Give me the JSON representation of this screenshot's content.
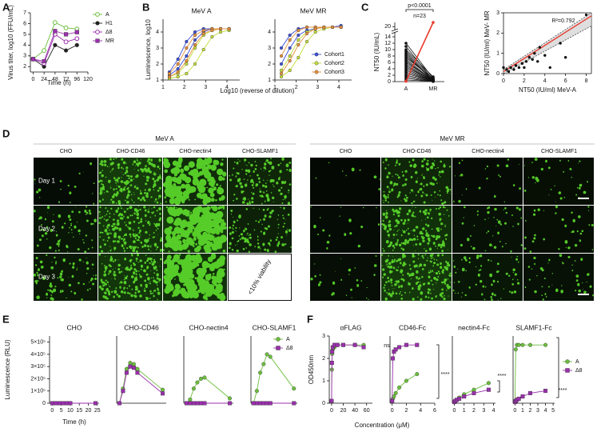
{
  "panel_labels": [
    "A",
    "B",
    "C",
    "D",
    "E",
    "F"
  ],
  "chart_data": [
    {
      "type": "line",
      "ylabel": "Virus titer, log10 (FFU/mL)",
      "xlabel": "Time (h)",
      "x": [
        0,
        24,
        48,
        72,
        96
      ],
      "xlim": [
        -6,
        120
      ],
      "xticks": [
        0,
        24,
        48,
        72,
        96,
        120
      ],
      "ylim": [
        1.5,
        7
      ],
      "yticks": [
        2,
        3,
        4,
        5,
        6,
        7
      ],
      "legend": "right",
      "series": [
        {
          "name": "A",
          "color": "#6cbf3c",
          "marker": "circle-open",
          "values": [
            2.7,
            3.5,
            6.1,
            5.6,
            5.5
          ]
        },
        {
          "name": "H1",
          "color": "#222222",
          "marker": "circle",
          "values": [
            2.7,
            2.0,
            4.0,
            3.5,
            4.0
          ]
        },
        {
          "name": "Δ8",
          "color": "#9b2fae",
          "marker": "circle-open",
          "values": [
            2.7,
            2.3,
            5.0,
            4.3,
            4.6
          ]
        },
        {
          "name": "MR",
          "color": "#9b2fae",
          "marker": "square",
          "values": [
            2.7,
            2.5,
            5.3,
            5.0,
            5.2
          ]
        }
      ]
    },
    {
      "type": "line",
      "title": "MeV A",
      "ylabel": "Luminescence, log10",
      "xlabel": "Log10 (reverse of dilution)",
      "x": [
        1.3,
        1.7,
        2.1,
        2.5,
        2.9,
        3.3,
        3.7,
        4.1
      ],
      "xlim": [
        1,
        4.6
      ],
      "xticks": [
        1,
        2,
        3,
        4
      ],
      "ylim": [
        1,
        4.8
      ],
      "yticks": [
        1,
        2,
        3,
        4
      ],
      "series": [
        {
          "color": "#3b4fd8",
          "marker": "circle",
          "curves": [
            [
              1.5,
              2.3,
              3.4,
              4.0,
              4.2,
              4.2,
              4.2,
              4.2
            ],
            [
              1.3,
              1.7,
              2.5,
              3.5,
              4.0,
              4.2,
              4.2,
              4.2
            ]
          ]
        },
        {
          "color": "#c4de3a",
          "marker": "circle",
          "curves": [
            [
              1.2,
              1.4,
              2.0,
              3.0,
              3.8,
              4.1,
              4.2,
              4.2
            ],
            [
              1.1,
              1.2,
              1.4,
              2.0,
              2.9,
              3.7,
              4.0,
              4.1
            ]
          ]
        },
        {
          "color": "#e8903a",
          "marker": "circle",
          "curves": [
            [
              1.4,
              2.0,
              3.0,
              3.8,
              4.1,
              4.2,
              4.2,
              4.2
            ],
            [
              1.2,
              1.5,
              2.2,
              3.2,
              3.9,
              4.1,
              4.2,
              4.2
            ]
          ]
        }
      ]
    },
    {
      "type": "line",
      "title": "MeV MR",
      "x": [
        1.3,
        1.7,
        2.1,
        2.5,
        2.9,
        3.3,
        3.7,
        4.1
      ],
      "xlim": [
        1,
        4.6
      ],
      "xticks": [
        1,
        2,
        3,
        4
      ],
      "ylim": [
        1,
        4.8
      ],
      "yticks": [
        1,
        2,
        3,
        4
      ],
      "legend": "lower right",
      "series": [
        {
          "name": "Cohort1",
          "color": "#3b4fd8",
          "marker": "circle",
          "curves": [
            [
              3.0,
              3.8,
              4.2,
              4.3,
              4.3,
              4.3,
              4.3,
              4.3
            ],
            [
              2.0,
              3.0,
              3.8,
              4.1,
              4.2,
              4.3,
              4.3,
              4.4
            ]
          ]
        },
        {
          "name": "Cohort2",
          "color": "#c4de3a",
          "marker": "circle",
          "curves": [
            [
              1.6,
              2.5,
              3.5,
              4.0,
              4.2,
              4.3,
              4.3,
              4.3
            ],
            [
              1.2,
              1.6,
              2.4,
              3.4,
              4.0,
              4.2,
              4.3,
              4.3
            ]
          ]
        },
        {
          "name": "Cohort3",
          "color": "#e8903a",
          "marker": "circle",
          "curves": [
            [
              2.5,
              3.5,
              4.1,
              4.3,
              4.3,
              4.3,
              4.3,
              4.3
            ],
            [
              1.4,
              2.2,
              3.2,
              3.9,
              4.2,
              4.3,
              4.3,
              4.3
            ]
          ]
        }
      ]
    },
    {
      "type": "paired",
      "ylabel": "NT50 (IU/mL)",
      "categories": [
        "A",
        "MR"
      ],
      "ylim": [
        0,
        22
      ],
      "axis_break": [
        15,
        19
      ],
      "yticks": [
        0,
        2,
        4,
        6,
        8,
        10,
        12,
        14,
        20
      ],
      "annotations": [
        "p<0.0001",
        "n=23"
      ],
      "series": [
        {
          "color": "#111111",
          "values": [
            [
              12,
              1
            ],
            [
              11,
              0.5
            ],
            [
              10,
              1.5
            ],
            [
              9.5,
              0.8
            ],
            [
              9,
              0.3
            ],
            [
              8.5,
              0.2
            ],
            [
              8,
              0.5
            ],
            [
              7.5,
              1
            ],
            [
              7,
              0.3
            ],
            [
              6.5,
              0.2
            ],
            [
              6,
              0.5
            ],
            [
              5.5,
              0.2
            ],
            [
              5,
              0.1
            ],
            [
              4.5,
              0.3
            ],
            [
              4,
              0.2
            ],
            [
              3.5,
              0.1
            ],
            [
              3,
              0.1
            ],
            [
              2.5,
              0.2
            ],
            [
              2,
              0.1
            ],
            [
              1.5,
              0.1
            ],
            [
              1,
              0.05
            ],
            [
              0.5,
              0.1
            ]
          ]
        },
        {
          "color": "#e8382b",
          "values": [
            [
              0.1,
              22
            ]
          ]
        }
      ]
    },
    {
      "type": "scatter",
      "xlabel": "NT50 (IU/ml)  MeV-A",
      "ylabel": "NT50 (IU/ml)  MeV- MR",
      "color": "#111111",
      "x": [
        0,
        0.3,
        0.5,
        0.7,
        1,
        1.2,
        1.5,
        1.8,
        2,
        2.2,
        2.5,
        2.8,
        3,
        3.3,
        3.5,
        4,
        4.5,
        5.5,
        6,
        8
      ],
      "values": [
        0.3,
        0.2,
        0.1,
        0.3,
        0.2,
        0.4,
        0.3,
        0.5,
        0.3,
        0.6,
        0.8,
        0.7,
        1.0,
        0.6,
        1.3,
        0.9,
        0.3,
        1.5,
        0.8,
        2.9
      ],
      "xlim": [
        0,
        8.5
      ],
      "xticks": [
        0,
        2,
        4,
        6,
        8
      ],
      "ylim": [
        0,
        3
      ],
      "yticks": [
        0,
        1,
        2,
        3
      ],
      "annotations": [
        "R²=0.792"
      ],
      "fit": {
        "color": "#e8382b",
        "x": [
          0,
          8.5
        ],
        "y": [
          0.1,
          2.85
        ],
        "band_low": [
          0,
          2.35
        ],
        "band_high": [
          0.2,
          3
        ]
      }
    },
    {
      "type": "line",
      "title": "CHO",
      "ylabel": "Luminescence (RLU)",
      "xlabel": "Time (h)",
      "x": [
        0,
        2,
        4,
        6,
        8,
        10,
        24
      ],
      "xlim": [
        -1.5,
        26
      ],
      "xticks": [
        0,
        5,
        10,
        15,
        20,
        25
      ],
      "ylim": [
        0,
        550000
      ],
      "yticks": [
        0,
        {
          "value": 100000,
          "label": "1×10⁵"
        },
        {
          "value": 200000,
          "label": "2×10⁵"
        },
        {
          "value": 300000,
          "label": "3×10⁵"
        },
        {
          "value": 400000,
          "label": "4×10⁵"
        },
        {
          "value": 500000,
          "label": "5×10⁵"
        }
      ],
      "series": [
        {
          "color": "#6cbf3c",
          "marker": "circle",
          "values": [
            0,
            0,
            0,
            0,
            0,
            0,
            0
          ]
        },
        {
          "color": "#9b2fae",
          "marker": "square",
          "values": [
            0,
            0,
            0,
            0,
            0,
            0,
            0
          ]
        }
      ]
    },
    {
      "type": "line",
      "title": "CHO-CD46",
      "x": [
        0,
        2,
        4,
        6,
        8,
        10,
        24
      ],
      "xlim": [
        -1.5,
        26
      ],
      "ylim": [
        0,
        550000
      ],
      "series": [
        {
          "color": "#6cbf3c",
          "marker": "circle",
          "values": [
            0,
            120000,
            280000,
            330000,
            320000,
            280000,
            110000
          ]
        },
        {
          "color": "#9b2fae",
          "marker": "square",
          "values": [
            0,
            100000,
            250000,
            300000,
            290000,
            250000,
            80000
          ]
        }
      ]
    },
    {
      "type": "line",
      "title": "CHO-nectin4",
      "x": [
        0,
        2,
        4,
        6,
        8,
        10,
        24
      ],
      "xlim": [
        -1.5,
        26
      ],
      "ylim": [
        0,
        550000
      ],
      "series": [
        {
          "color": "#6cbf3c",
          "marker": "circle",
          "values": [
            0,
            30000,
            120000,
            170000,
            200000,
            210000,
            40000
          ]
        },
        {
          "color": "#9b2fae",
          "marker": "square",
          "values": [
            0,
            0,
            0,
            0,
            0,
            0,
            0
          ]
        }
      ]
    },
    {
      "type": "line",
      "title": "CHO-SLAMF1",
      "x": [
        0,
        2,
        4,
        6,
        8,
        10,
        24
      ],
      "xlim": [
        -1.5,
        26
      ],
      "ylim": [
        0,
        550000
      ],
      "legend": "upper right",
      "series": [
        {
          "name": "A",
          "color": "#6cbf3c",
          "marker": "circle",
          "values": [
            0,
            100000,
            250000,
            320000,
            400000,
            380000,
            120000
          ]
        },
        {
          "name": "Δ8",
          "color": "#9b2fae",
          "marker": "square",
          "values": [
            0,
            0,
            0,
            0,
            0,
            0,
            0
          ]
        }
      ]
    },
    {
      "type": "line",
      "title": "αFLAG",
      "ylabel": "OD450nm",
      "xlabel": "Concentration (μM)",
      "x": [
        0,
        0.5,
        1,
        2,
        5,
        10,
        20,
        40,
        55
      ],
      "xlim": [
        -4,
        70
      ],
      "xticks": [
        0,
        20,
        40,
        60
      ],
      "ylim": [
        0,
        3
      ],
      "yticks": [
        0,
        1,
        2,
        3
      ],
      "annotations": [
        "ns"
      ],
      "series": [
        {
          "color": "#6cbf3c",
          "marker": "circle",
          "values": [
            0.1,
            1.5,
            2.2,
            2.4,
            2.5,
            2.6,
            2.6,
            2.6,
            2.6
          ]
        },
        {
          "color": "#9b2fae",
          "marker": "square",
          "values": [
            0.1,
            1.8,
            2.3,
            2.5,
            2.6,
            2.6,
            2.6,
            2.6,
            2.5
          ]
        }
      ]
    },
    {
      "type": "line",
      "title": "CD46-Fc",
      "x": [
        0,
        0.1,
        0.25,
        0.5,
        1,
        2,
        3.5
      ],
      "xlim": [
        -0.3,
        6
      ],
      "xticks": [
        0,
        2,
        4,
        6
      ],
      "ylim": [
        0,
        3
      ],
      "annotations": [
        "****"
      ],
      "series": [
        {
          "color": "#6cbf3c",
          "marker": "circle",
          "values": [
            0.1,
            0.2,
            0.3,
            0.45,
            0.7,
            1.0,
            1.3
          ]
        },
        {
          "color": "#9b2fae",
          "marker": "square",
          "values": [
            0.1,
            2.0,
            2.3,
            2.4,
            2.5,
            2.6,
            2.6
          ]
        }
      ]
    },
    {
      "type": "line",
      "title": "nectin4-Fc",
      "x": [
        0,
        0.1,
        0.25,
        0.5,
        1,
        2,
        3.5
      ],
      "xlim": [
        -0.2,
        4.2
      ],
      "xticks": [
        0,
        1,
        2,
        3,
        4
      ],
      "ylim": [
        0,
        3
      ],
      "annotations": [
        "****"
      ],
      "series": [
        {
          "color": "#6cbf3c",
          "marker": "circle",
          "values": [
            0.05,
            0.1,
            0.15,
            0.25,
            0.4,
            0.6,
            0.9
          ]
        },
        {
          "color": "#9b2fae",
          "marker": "square",
          "values": [
            0.05,
            0.1,
            0.15,
            0.2,
            0.3,
            0.45,
            0.6
          ]
        }
      ]
    },
    {
      "type": "line",
      "title": "SLAMF1-Fc",
      "x": [
        0,
        0.1,
        0.25,
        0.5,
        1,
        2,
        4
      ],
      "xlim": [
        -0.25,
        5.2
      ],
      "xticks": [
        0,
        1,
        2,
        3,
        4,
        5
      ],
      "ylim": [
        0,
        3
      ],
      "annotations": [
        "****"
      ],
      "legend": "center right",
      "series": [
        {
          "name": "A",
          "color": "#6cbf3c",
          "marker": "circle",
          "values": [
            0.1,
            2.4,
            2.6,
            2.6,
            2.6,
            2.6,
            2.6
          ]
        },
        {
          "name": "Δ8",
          "color": "#9b2fae",
          "marker": "square",
          "values": [
            0.05,
            0.1,
            0.15,
            0.2,
            0.3,
            0.45,
            0.55
          ]
        }
      ]
    }
  ],
  "panel_d": {
    "rows": [
      "Day 1",
      "Day 2",
      "Day 3"
    ],
    "groups": [
      {
        "title": "MeV A",
        "columns": [
          "CHO",
          "CHO-CD46",
          "CHO-nectin4",
          "CHO-SLAMF1"
        ],
        "note": "<10% viability"
      },
      {
        "title": "MeV MR",
        "columns": [
          "CHO",
          "CHO-CD46",
          "CHO-nectin4",
          "CHO-SLAMF1"
        ]
      }
    ]
  }
}
